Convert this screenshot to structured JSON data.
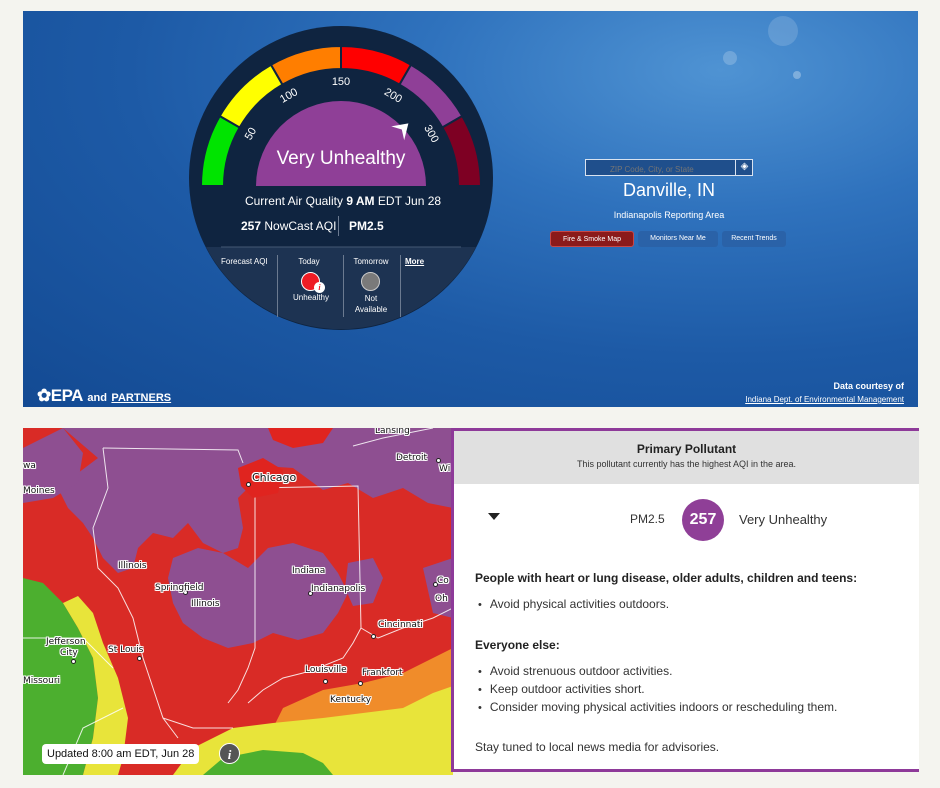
{
  "hero": {
    "gauge": {
      "ticks": [
        "50",
        "100",
        "150",
        "200",
        "300"
      ],
      "category": "Very Unhealthy",
      "aqi_value": 257,
      "colors": {
        "good": "#00e400",
        "moderate": "#ffff00",
        "usg": "#ff7e00",
        "unhealthy": "#ff0000",
        "very_unhealthy": "#8f3f97",
        "hazardous": "#7e0023"
      },
      "current_prefix": "Current Air Quality",
      "current_time": "9 AM",
      "current_suffix": "EDT Jun 28",
      "nowcast_value": "257",
      "nowcast_label": "NowCast AQI",
      "pollutant": "PM2.5"
    },
    "forecast": {
      "label": "Forecast AQI",
      "today_label": "Today",
      "today_status": "Unhealthy",
      "tomorrow_label": "Tomorrow",
      "tomorrow_status_line1": "Not",
      "tomorrow_status_line2": "Available",
      "more_label": "More"
    },
    "search": {
      "placeholder": "ZIP Code, City, or State",
      "icon": "locate-icon"
    },
    "city": "Danville, IN",
    "reporting_area": "Indianapolis Reporting Area",
    "buttons": {
      "fire": "Fire & Smoke Map",
      "monitors": "Monitors Near Me",
      "trends": "Recent Trends"
    },
    "logo": {
      "epa": "EPA",
      "and": "and",
      "partners": "PARTNERS"
    },
    "courtesy": {
      "title": "Data courtesy of",
      "agency": "Indiana Dept. of Environmental Management"
    }
  },
  "map": {
    "labels": {
      "lansing": "Lansing",
      "detroit": "Detroit",
      "wi": "Wi",
      "iowa_fragment": "wa",
      "des_moines": "Moines",
      "chicago": "Chicago",
      "illinois_state": "Illinois",
      "springfield": "Springfield",
      "illinois2": "Illinois",
      "indiana": "Indiana",
      "indianapolis": "Indianapolis",
      "co": "Co",
      "oh": "Oh",
      "cincinnati": "Cincinnati",
      "jefferson": "Jefferson",
      "city": "City",
      "st_louis": "St Louis",
      "missouri": "Missouri",
      "louisville": "Louisville",
      "frankfort": "Frankfort",
      "kentucky": "Kentucky"
    },
    "updated": "Updated 8:00 am EDT, Jun 28",
    "info_icon": "i"
  },
  "panel": {
    "title": "Primary Pollutant",
    "subtitle": "This pollutant currently has the highest AQI in the area.",
    "pollutant": "PM2.5",
    "aqi": "257",
    "category": "Very Unhealthy",
    "groups": [
      {
        "title": "People with heart or lung disease, older adults, children and teens:",
        "items": [
          "Avoid physical activities outdoors."
        ]
      },
      {
        "title": "Everyone else:",
        "items": [
          "Avoid strenuous outdoor activities.",
          "Keep outdoor activities short.",
          "Consider moving physical activities indoors or rescheduling them."
        ]
      }
    ],
    "footer": "Stay tuned to local news media for advisories."
  }
}
